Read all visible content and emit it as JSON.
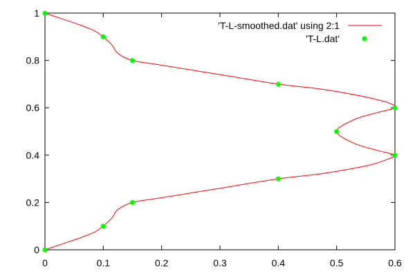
{
  "chart_data": {
    "type": "line",
    "title": "",
    "xlabel": "",
    "ylabel": "",
    "xlim": [
      0,
      0.6
    ],
    "ylim": [
      0,
      1
    ],
    "x_ticks": [
      "0",
      "0.1",
      "0.2",
      "0.3",
      "0.4",
      "0.5",
      "0.6"
    ],
    "y_ticks": [
      "0",
      "0.2",
      "0.4",
      "0.6",
      "0.8",
      "1"
    ],
    "grid": false,
    "legend_position": "top-right",
    "series": [
      {
        "name": "'T-L-smoothed.dat' using 2:1",
        "kind": "line",
        "color": "#ff0000",
        "points": [
          [
            0.0,
            0.0
          ],
          [
            0.03,
            0.025
          ],
          [
            0.06,
            0.05
          ],
          [
            0.085,
            0.075
          ],
          [
            0.1,
            0.1
          ],
          [
            0.115,
            0.135
          ],
          [
            0.125,
            0.17
          ],
          [
            0.15,
            0.2
          ],
          [
            0.2,
            0.22
          ],
          [
            0.3,
            0.26
          ],
          [
            0.4,
            0.3
          ],
          [
            0.47,
            0.32
          ],
          [
            0.52,
            0.34
          ],
          [
            0.56,
            0.36
          ],
          [
            0.59,
            0.385
          ],
          [
            0.6,
            0.4
          ],
          [
            0.57,
            0.42
          ],
          [
            0.53,
            0.45
          ],
          [
            0.5,
            0.5
          ],
          [
            0.53,
            0.55
          ],
          [
            0.57,
            0.58
          ],
          [
            0.6,
            0.6
          ],
          [
            0.59,
            0.62
          ],
          [
            0.56,
            0.64
          ],
          [
            0.52,
            0.66
          ],
          [
            0.47,
            0.68
          ],
          [
            0.4,
            0.7
          ],
          [
            0.3,
            0.74
          ],
          [
            0.2,
            0.78
          ],
          [
            0.15,
            0.8
          ],
          [
            0.125,
            0.83
          ],
          [
            0.115,
            0.865
          ],
          [
            0.1,
            0.9
          ],
          [
            0.085,
            0.925
          ],
          [
            0.06,
            0.95
          ],
          [
            0.03,
            0.975
          ],
          [
            0.0,
            1.0
          ]
        ]
      },
      {
        "name": "'T-L.dat'",
        "kind": "points",
        "color": "#00ff00",
        "points": [
          [
            0.0,
            0.0
          ],
          [
            0.1,
            0.1
          ],
          [
            0.15,
            0.2
          ],
          [
            0.4,
            0.3
          ],
          [
            0.6,
            0.4
          ],
          [
            0.5,
            0.5
          ],
          [
            0.6,
            0.6
          ],
          [
            0.4,
            0.7
          ],
          [
            0.15,
            0.8
          ],
          [
            0.1,
            0.9
          ],
          [
            0.0,
            1.0
          ]
        ]
      }
    ]
  }
}
